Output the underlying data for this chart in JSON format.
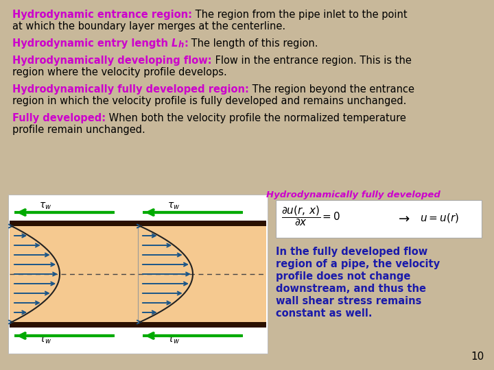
{
  "bg_color": "#c8b89a",
  "bold_color": "#cc00cc",
  "body_color": "#000000",
  "blue_text_color": "#1a1aaa",
  "magenta_italic": "#cc00cc",
  "pipe_fill": "#f5c990",
  "pipe_wall": "#2a1000",
  "arrow_color": "#1a5588",
  "green_arrow": "#00aa00",
  "dashed_color": "#444444",
  "formula_label": "Hydrodynamically fully developed",
  "right_text_lines": [
    "In the fully developed flow",
    "region of a pipe, the velocity",
    "profile does not change",
    "downstream, and thus the",
    "wall shear stress remains",
    "constant as well."
  ],
  "text_lines": [
    {
      "bold": "Hydrodynamic entrance region:",
      "rest": " The region from the pipe inlet to the point"
    },
    {
      "bold": "",
      "rest": "at which the boundary layer merges at the centerline."
    },
    {
      "bold": "Hydrodynamic entry length ",
      "rest": ": The length of this region.",
      "Lh": true
    },
    {
      "bold": "Hydrodynamically developing flow:",
      "rest": " Flow in the entrance region. This is the"
    },
    {
      "bold": "",
      "rest": "region where the velocity profile develops."
    },
    {
      "bold": "Hydrodynamically fully developed region:",
      "rest": " The region beyond the entrance"
    },
    {
      "bold": "",
      "rest": "region in which the velocity profile is fully developed and remains unchanged."
    },
    {
      "bold": "Fully developed:",
      "rest": " When both the velocity profile the normalized temperature"
    },
    {
      "bold": "",
      "rest": "profile remain unchanged."
    }
  ]
}
